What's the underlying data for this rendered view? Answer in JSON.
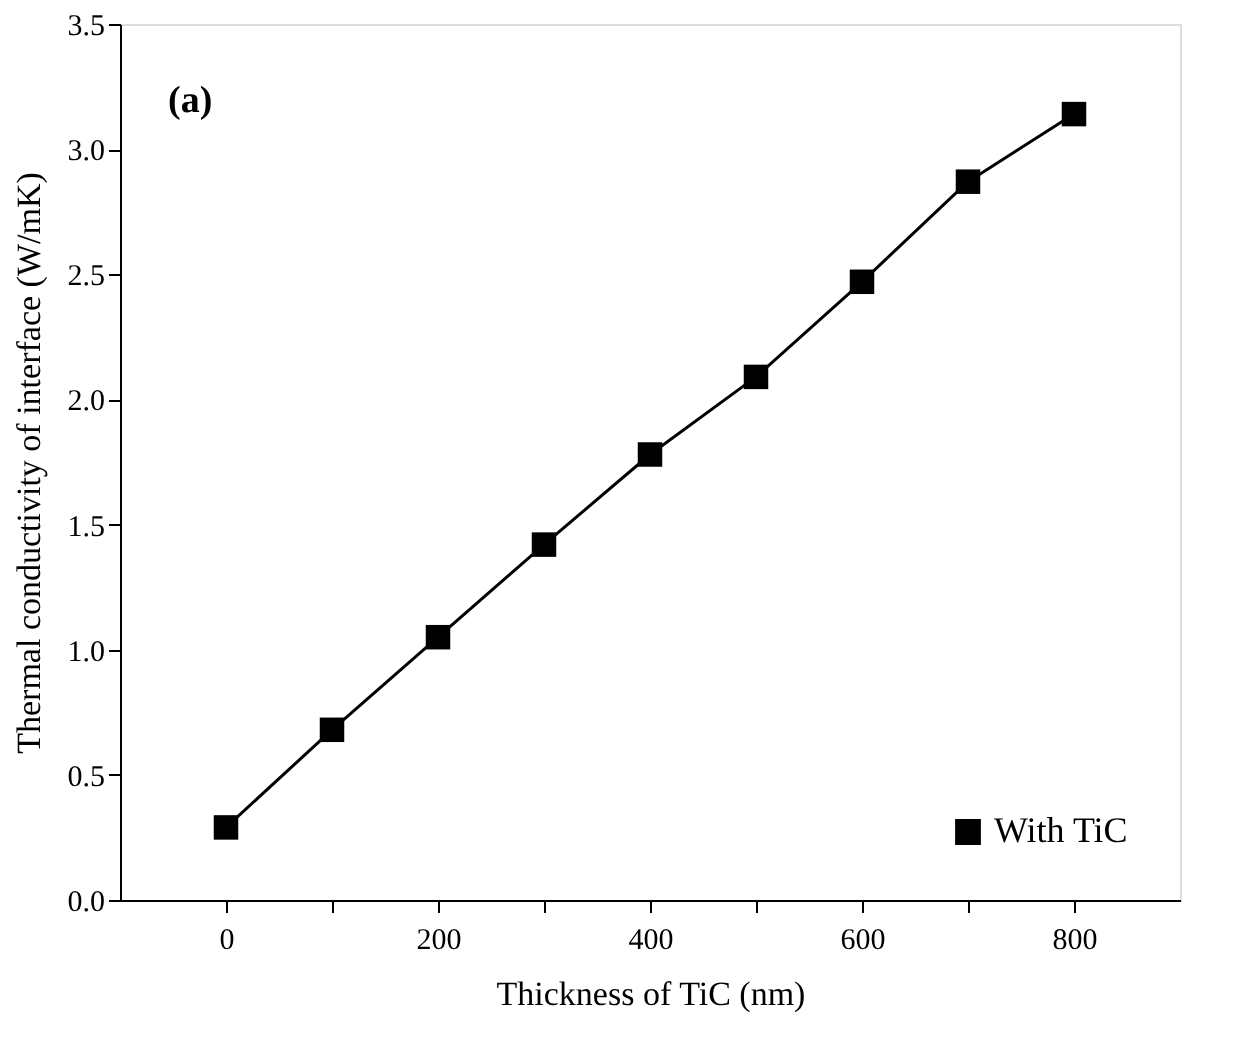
{
  "chart_data": {
    "type": "line",
    "xlabel": "Thickness of TiC (nm)",
    "ylabel": "Thermal conductivity of interface (W/mK)",
    "annotations": [
      "(a)"
    ],
    "x": [
      0,
      100,
      200,
      300,
      400,
      500,
      600,
      700,
      800
    ],
    "series": [
      {
        "name": "With TiC",
        "color": "#000000",
        "values": [
          0.29,
          0.68,
          1.05,
          1.42,
          1.78,
          2.09,
          2.47,
          2.87,
          3.14
        ]
      }
    ],
    "xlim": [
      -100,
      900
    ],
    "xticks": [
      0,
      {
        "value": 100,
        "label": null
      },
      200,
      {
        "value": 300,
        "label": null
      },
      400,
      {
        "value": 500,
        "label": null
      },
      600,
      {
        "value": 700,
        "label": null
      },
      800
    ],
    "ylim": [
      0,
      3.5
    ],
    "yticks": [
      {
        "value": 0,
        "label": "0.0"
      },
      0.5,
      {
        "value": 1,
        "label": "1.0"
      },
      1.5,
      {
        "value": 2,
        "label": "2.0"
      },
      2.5,
      {
        "value": 3,
        "label": "3.0"
      },
      3.5
    ],
    "marker": "square",
    "line_style": "solid",
    "legend": "bottom right",
    "grid": false
  }
}
